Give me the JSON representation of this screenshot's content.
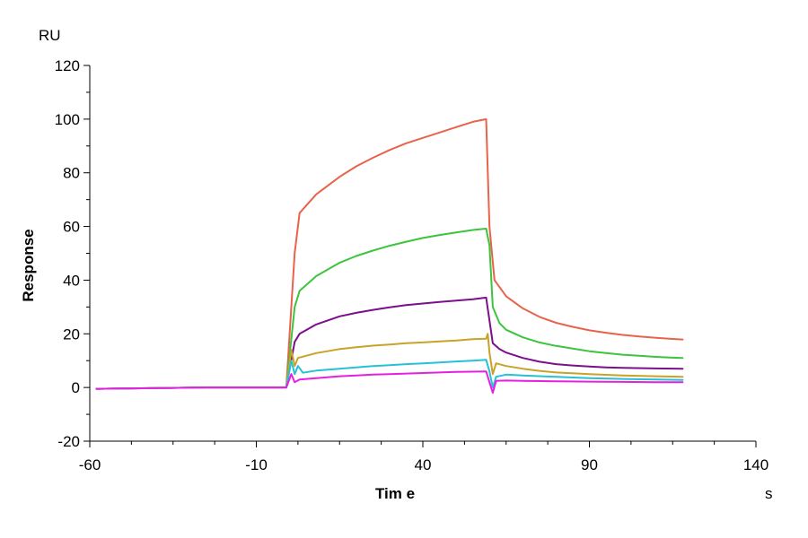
{
  "chart_data": {
    "type": "line",
    "title": "",
    "xlabel": "Tim e",
    "ylabel": "Response",
    "x_unit": "s",
    "y_unit": "RU",
    "xlim": [
      -60,
      140
    ],
    "ylim": [
      -20,
      120
    ],
    "x_ticks": [
      -60,
      -10,
      40,
      90,
      140
    ],
    "y_ticks": [
      -20,
      0,
      20,
      40,
      60,
      80,
      100,
      120
    ],
    "grid": false,
    "legend": "none",
    "series": [
      {
        "color": "#E8634A",
        "values": [
          [
            -58,
            -0.5
          ],
          [
            -25,
            0
          ],
          [
            -1,
            0
          ],
          [
            1.5,
            50
          ],
          [
            3,
            65
          ],
          [
            8,
            72
          ],
          [
            15,
            78.5
          ],
          [
            20,
            82.4
          ],
          [
            25,
            85.6
          ],
          [
            30,
            88.5
          ],
          [
            35,
            91
          ],
          [
            40,
            93
          ],
          [
            45,
            95
          ],
          [
            50,
            97
          ],
          [
            55,
            99
          ],
          [
            59,
            100
          ],
          [
            60,
            60
          ],
          [
            61.5,
            40
          ],
          [
            65,
            34
          ],
          [
            70,
            29.5
          ],
          [
            75,
            26.3
          ],
          [
            80,
            24.1
          ],
          [
            85,
            22.6
          ],
          [
            90,
            21.3
          ],
          [
            95,
            20.4
          ],
          [
            100,
            19.6
          ],
          [
            105,
            19
          ],
          [
            110,
            18.5
          ],
          [
            115,
            18.1
          ],
          [
            118,
            17.9
          ]
        ]
      },
      {
        "color": "#3CC43C",
        "values": [
          [
            -58,
            -0.5
          ],
          [
            -25,
            0
          ],
          [
            -1,
            0
          ],
          [
            1.5,
            30
          ],
          [
            3,
            36
          ],
          [
            8,
            41.5
          ],
          [
            15,
            46.5
          ],
          [
            20,
            49
          ],
          [
            25,
            51
          ],
          [
            30,
            52.8
          ],
          [
            35,
            54.3
          ],
          [
            40,
            55.7
          ],
          [
            45,
            56.8
          ],
          [
            50,
            57.8
          ],
          [
            55,
            58.7
          ],
          [
            59,
            59.2
          ],
          [
            60,
            53
          ],
          [
            61,
            30
          ],
          [
            63,
            24
          ],
          [
            65,
            21.5
          ],
          [
            70,
            18.7
          ],
          [
            75,
            16.8
          ],
          [
            80,
            15.5
          ],
          [
            85,
            14.5
          ],
          [
            90,
            13.5
          ],
          [
            95,
            12.8
          ],
          [
            100,
            12.2
          ],
          [
            105,
            11.8
          ],
          [
            110,
            11.4
          ],
          [
            115,
            11.1
          ],
          [
            118,
            11
          ]
        ]
      },
      {
        "color": "#7B0F8C",
        "values": [
          [
            -58,
            -0.5
          ],
          [
            -25,
            0
          ],
          [
            -1,
            0
          ],
          [
            1.5,
            17
          ],
          [
            3,
            20
          ],
          [
            8,
            23.5
          ],
          [
            15,
            26.5
          ],
          [
            20,
            27.8
          ],
          [
            25,
            28.9
          ],
          [
            30,
            29.9
          ],
          [
            35,
            30.7
          ],
          [
            40,
            31.3
          ],
          [
            45,
            31.9
          ],
          [
            50,
            32.4
          ],
          [
            55,
            32.9
          ],
          [
            59,
            33.5
          ],
          [
            60,
            25
          ],
          [
            61,
            16.5
          ],
          [
            63,
            14.3
          ],
          [
            65,
            13
          ],
          [
            70,
            11
          ],
          [
            75,
            9.6
          ],
          [
            80,
            8.7
          ],
          [
            85,
            8.2
          ],
          [
            90,
            7.8
          ],
          [
            95,
            7.5
          ],
          [
            100,
            7.3
          ],
          [
            110,
            7.1
          ],
          [
            118,
            7
          ]
        ]
      },
      {
        "color": "#C9A227",
        "values": [
          [
            -58,
            -0.5
          ],
          [
            -25,
            0
          ],
          [
            -1,
            0
          ],
          [
            0.5,
            14
          ],
          [
            1.5,
            8
          ],
          [
            2.5,
            11
          ],
          [
            8,
            12.8
          ],
          [
            15,
            14.3
          ],
          [
            20,
            15
          ],
          [
            25,
            15.6
          ],
          [
            30,
            16
          ],
          [
            35,
            16.5
          ],
          [
            40,
            16.8
          ],
          [
            45,
            17.2
          ],
          [
            50,
            17.5
          ],
          [
            55,
            18
          ],
          [
            59,
            18.2
          ],
          [
            59.5,
            20
          ],
          [
            60,
            13
          ],
          [
            61,
            5
          ],
          [
            62,
            9
          ],
          [
            65,
            8
          ],
          [
            70,
            7
          ],
          [
            75,
            6.2
          ],
          [
            80,
            5.6
          ],
          [
            90,
            5
          ],
          [
            100,
            4.5
          ],
          [
            110,
            4.2
          ],
          [
            118,
            4
          ]
        ]
      },
      {
        "color": "#25C1D4",
        "values": [
          [
            -58,
            -0.5
          ],
          [
            -25,
            0
          ],
          [
            -1,
            0
          ],
          [
            0.5,
            10
          ],
          [
            1.5,
            5
          ],
          [
            2.5,
            8
          ],
          [
            4,
            5.5
          ],
          [
            8,
            6.3
          ],
          [
            15,
            7
          ],
          [
            20,
            7.5
          ],
          [
            25,
            8
          ],
          [
            30,
            8.3
          ],
          [
            35,
            8.7
          ],
          [
            40,
            9
          ],
          [
            45,
            9.3
          ],
          [
            50,
            9.7
          ],
          [
            55,
            10
          ],
          [
            59,
            10.3
          ],
          [
            60,
            6
          ],
          [
            61,
            0
          ],
          [
            62,
            4
          ],
          [
            65,
            4.8
          ],
          [
            70,
            4.5
          ],
          [
            80,
            4
          ],
          [
            90,
            3.5
          ],
          [
            100,
            3.2
          ],
          [
            110,
            3
          ],
          [
            118,
            2.8
          ]
        ]
      },
      {
        "color": "#E61FE0",
        "values": [
          [
            -58,
            -0.5
          ],
          [
            -25,
            0
          ],
          [
            -1,
            0
          ],
          [
            0.5,
            5
          ],
          [
            1.5,
            2
          ],
          [
            3,
            3
          ],
          [
            8,
            3.5
          ],
          [
            15,
            4.2
          ],
          [
            20,
            4.5
          ],
          [
            25,
            4.8
          ],
          [
            30,
            5
          ],
          [
            35,
            5.2
          ],
          [
            40,
            5.4
          ],
          [
            45,
            5.6
          ],
          [
            50,
            5.8
          ],
          [
            55,
            5.9
          ],
          [
            59,
            6
          ],
          [
            60,
            2
          ],
          [
            61,
            -2
          ],
          [
            62,
            2.5
          ],
          [
            65,
            2.6
          ],
          [
            70,
            2.5
          ],
          [
            80,
            2.3
          ],
          [
            90,
            2.2
          ],
          [
            100,
            2.1
          ],
          [
            110,
            2
          ],
          [
            118,
            2
          ]
        ]
      }
    ]
  }
}
